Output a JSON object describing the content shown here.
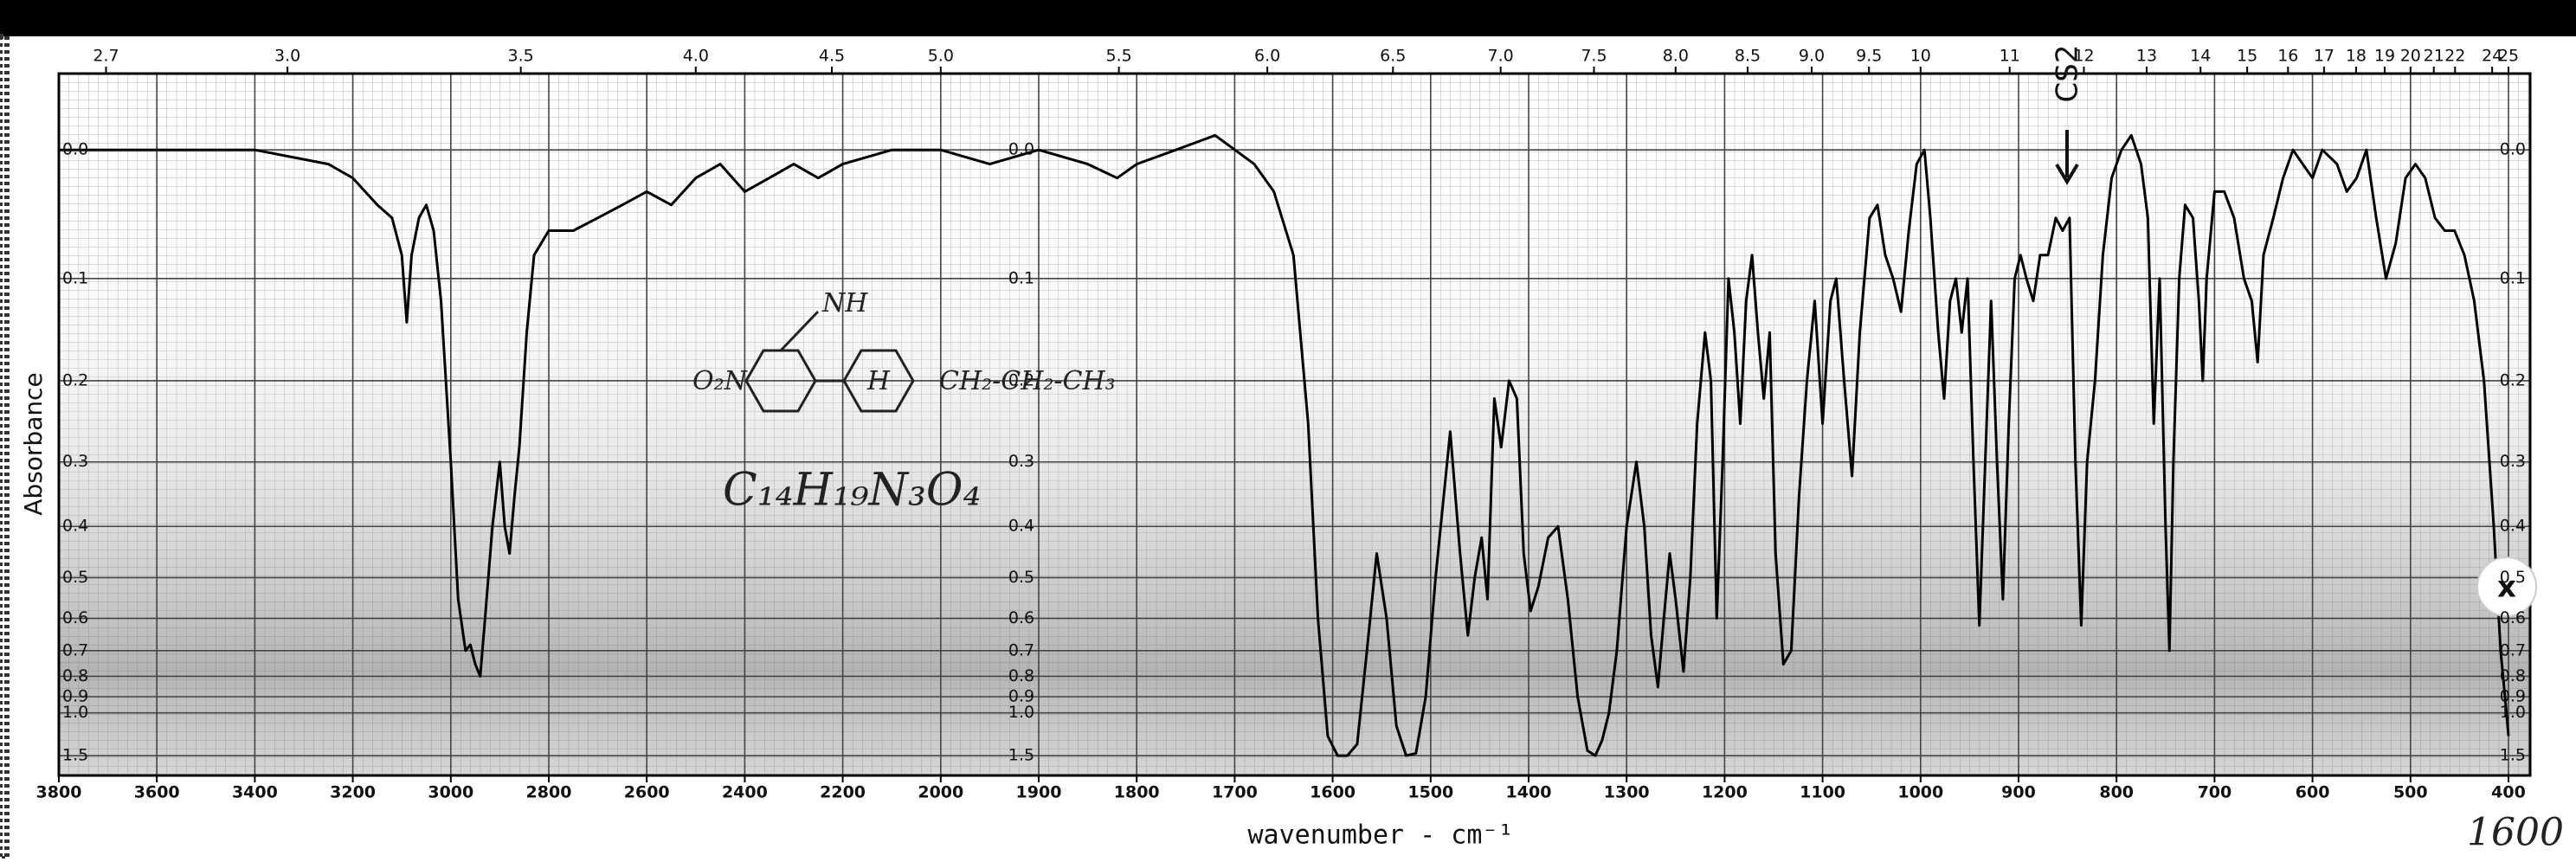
{
  "chart_data": {
    "type": "line",
    "y_label": "Absorbance",
    "x_label": "wavenumber - cm⁻¹",
    "yscale": "absorbance",
    "color": "#000000",
    "grid": true,
    "xlim": [
      3800,
      400
    ],
    "xticks": [
      3800,
      3600,
      3400,
      3200,
      3000,
      2800,
      2600,
      2400,
      2200,
      2000,
      1900,
      1800,
      1700,
      1600,
      1500,
      1400,
      1300,
      1200,
      1100,
      1000,
      900,
      800,
      700,
      600,
      500,
      400
    ],
    "x2ticks": [
      2.7,
      {
        "value": 3,
        "label": "3.0"
      },
      3.5,
      {
        "value": 4,
        "label": "4.0"
      },
      4.5,
      {
        "value": 5,
        "label": "5.0"
      },
      5.5,
      {
        "value": 6,
        "label": "6.0"
      },
      6.5,
      {
        "value": 7,
        "label": "7.0"
      },
      7.5,
      {
        "value": 8,
        "label": "8.0"
      },
      8.5,
      {
        "value": 9,
        "label": "9.0"
      },
      9.5,
      10,
      11,
      12,
      13,
      14,
      15,
      16,
      17,
      18,
      19,
      20,
      21,
      22,
      24,
      25
    ],
    "ylim": [
      -0.05,
      1.5
    ],
    "yticks": [
      {
        "value": 0,
        "label": "0.0"
      },
      0.1,
      0.2,
      0.3,
      0.4,
      0.5,
      0.6,
      0.7,
      0.8,
      0.9,
      {
        "value": 1,
        "label": "1.0"
      },
      1.5
    ],
    "x": [
      3800,
      3600,
      3400,
      3250,
      3200,
      3150,
      3120,
      3100,
      3090,
      3080,
      3065,
      3050,
      3035,
      3020,
      3000,
      2985,
      2970,
      2960,
      2950,
      2940,
      2930,
      2915,
      2900,
      2890,
      2880,
      2870,
      2860,
      2845,
      2830,
      2800,
      2750,
      2700,
      2650,
      2600,
      2550,
      2500,
      2450,
      2400,
      2350,
      2300,
      2250,
      2200,
      2100,
      2000,
      1950,
      1900,
      1850,
      1820,
      1800,
      1760,
      1720,
      1680,
      1660,
      1640,
      1625,
      1615,
      1605,
      1595,
      1585,
      1575,
      1565,
      1555,
      1545,
      1535,
      1525,
      1515,
      1505,
      1495,
      1480,
      1470,
      1462,
      1455,
      1448,
      1442,
      1435,
      1428,
      1420,
      1412,
      1405,
      1398,
      1390,
      1380,
      1370,
      1360,
      1350,
      1340,
      1332,
      1325,
      1318,
      1310,
      1300,
      1290,
      1282,
      1275,
      1268,
      1262,
      1256,
      1250,
      1242,
      1235,
      1228,
      1220,
      1214,
      1208,
      1202,
      1196,
      1190,
      1184,
      1178,
      1172,
      1166,
      1160,
      1154,
      1148,
      1140,
      1132,
      1124,
      1116,
      1108,
      1100,
      1092,
      1086,
      1078,
      1070,
      1062,
      1052,
      1044,
      1036,
      1028,
      1020,
      1012,
      1004,
      996,
      990,
      982,
      976,
      970,
      964,
      958,
      952,
      946,
      940,
      934,
      928,
      922,
      916,
      910,
      904,
      898,
      892,
      885,
      878,
      870,
      862,
      855,
      848,
      842,
      836,
      830,
      822,
      814,
      805,
      795,
      785,
      775,
      768,
      762,
      756,
      750,
      746,
      742,
      736,
      730,
      722,
      716,
      712,
      708,
      700,
      690,
      680,
      670,
      662,
      656,
      650,
      640,
      630,
      620,
      610,
      600,
      590,
      575,
      565,
      555,
      545,
      535,
      525,
      515,
      505,
      495,
      485,
      475,
      465,
      455,
      445,
      435,
      425,
      415,
      408,
      402,
      400
    ],
    "values": [
      0,
      0,
      0,
      0.01,
      0.02,
      0.04,
      0.05,
      0.08,
      0.14,
      0.08,
      0.05,
      0.04,
      0.06,
      0.12,
      0.3,
      0.55,
      0.7,
      0.68,
      0.75,
      0.8,
      0.6,
      0.4,
      0.3,
      0.4,
      0.45,
      0.35,
      0.28,
      0.15,
      0.08,
      0.06,
      0.06,
      0.05,
      0.04,
      0.03,
      0.04,
      0.02,
      0.01,
      0.03,
      0.02,
      0.01,
      0.02,
      0.01,
      0,
      0,
      0.01,
      0,
      0.01,
      0.02,
      0.01,
      0,
      -0.01,
      0.01,
      0.03,
      0.08,
      0.25,
      0.6,
      1.2,
      1.5,
      1.5,
      1.3,
      0.7,
      0.45,
      0.6,
      1.1,
      1.5,
      1.45,
      0.9,
      0.5,
      0.26,
      0.45,
      0.65,
      0.5,
      0.42,
      0.55,
      0.22,
      0.28,
      0.2,
      0.22,
      0.45,
      0.58,
      0.52,
      0.42,
      0.4,
      0.55,
      0.9,
      1.4,
      1.5,
      1.25,
      1.0,
      0.7,
      0.4,
      0.3,
      0.4,
      0.65,
      0.85,
      0.6,
      0.45,
      0.55,
      0.78,
      0.5,
      0.25,
      0.15,
      0.2,
      0.6,
      0.3,
      0.1,
      0.15,
      0.25,
      0.12,
      0.08,
      0.15,
      0.22,
      0.15,
      0.45,
      0.75,
      0.7,
      0.35,
      0.2,
      0.12,
      0.25,
      0.12,
      0.1,
      0.2,
      0.32,
      0.15,
      0.05,
      0.04,
      0.08,
      0.1,
      0.13,
      0.06,
      0.01,
      0,
      0.05,
      0.15,
      0.22,
      0.12,
      0.1,
      0.15,
      0.1,
      0.3,
      0.62,
      0.3,
      0.12,
      0.3,
      0.55,
      0.25,
      0.1,
      0.08,
      0.1,
      0.12,
      0.08,
      0.08,
      0.05,
      0.06,
      0.05,
      0.3,
      0.62,
      0.3,
      0.2,
      0.08,
      0.02,
      0,
      -0.01,
      0.01,
      0.05,
      0.25,
      0.1,
      0.4,
      0.7,
      0.3,
      0.1,
      0.04,
      0.05,
      0.12,
      0.2,
      0.1,
      0.03,
      0.03,
      0.05,
      0.1,
      0.12,
      0.18,
      0.08,
      0.05,
      0.02,
      0,
      0.01,
      0.02,
      0,
      0.01,
      0.03,
      0.02,
      0,
      0.05,
      0.1,
      0.07,
      0.02,
      0.01,
      0.02,
      0.05,
      0.06,
      0.06,
      0.08,
      0.12,
      0.2,
      0.4,
      0.7,
      1.0,
      1.2
    ],
    "annotations": {
      "solvent": "CS2",
      "formula": "C₁₄H₁₉N₃O₄",
      "nitro": "O₂N",
      "amine": "NH",
      "chain": "CH₂-CH₂-CH₃",
      "ring": "H",
      "note": "1600",
      "close": "x"
    }
  }
}
